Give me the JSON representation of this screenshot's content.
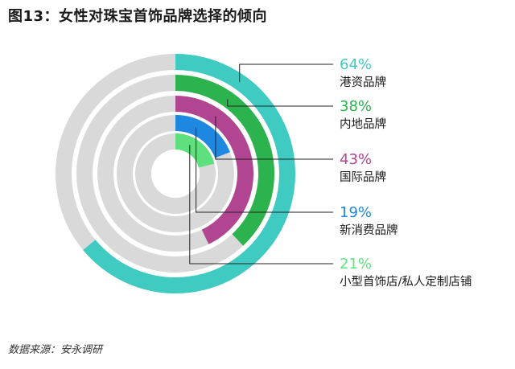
{
  "title": "图13：女性对珠宝首饰品牌选择的倾向",
  "source": "数据来源：安永调研",
  "chart_data": {
    "type": "radial-bar",
    "unit": "%",
    "max": 100,
    "track_color": "#d9d9d9",
    "series": [
      {
        "name": "港资品牌",
        "value": 64,
        "label": "64%",
        "color": "#3fcbc2"
      },
      {
        "name": "内地品牌",
        "value": 38,
        "label": "38%",
        "color": "#2db34e"
      },
      {
        "name": "国际品牌",
        "value": 43,
        "label": "43%",
        "color": "#b14591"
      },
      {
        "name": "新消费品牌",
        "value": 19,
        "label": "19%",
        "color": "#1e88e0"
      },
      {
        "name": "小型首饰店/私人定制店铺",
        "value": 21,
        "label": "21%",
        "color": "#5ee07e"
      }
    ]
  }
}
